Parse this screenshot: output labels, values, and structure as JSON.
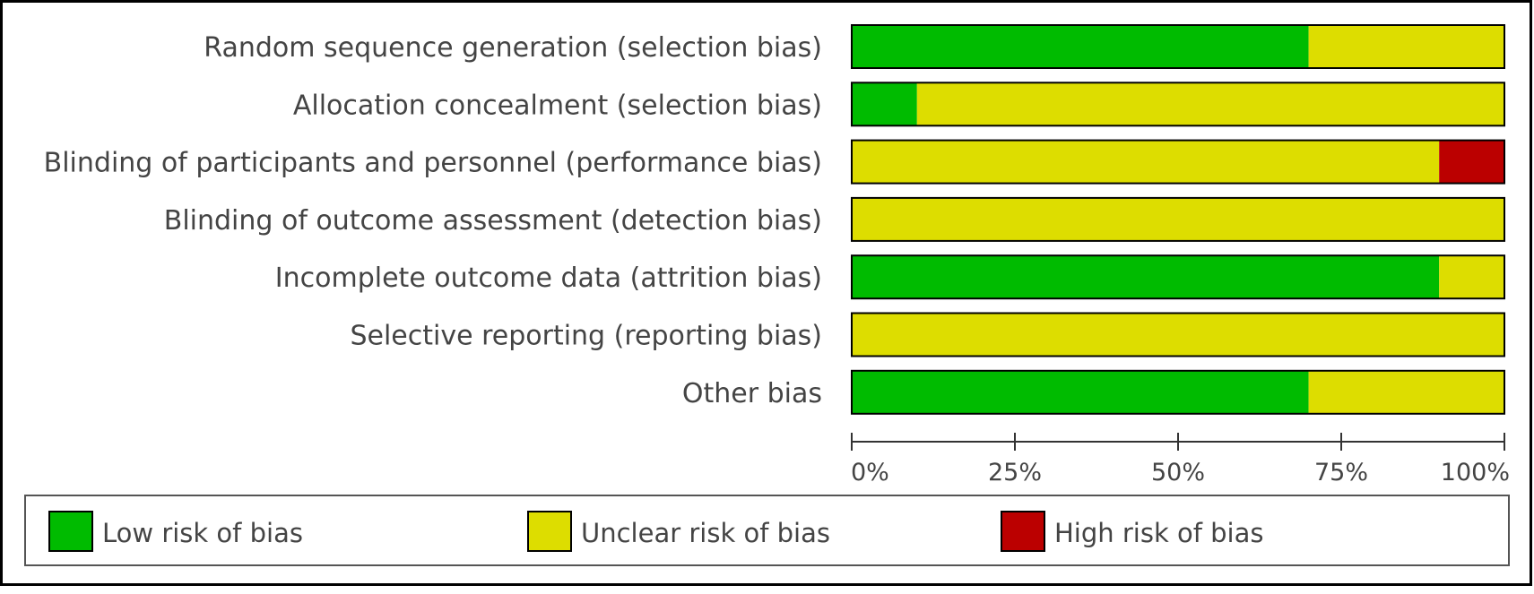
{
  "chart_data": {
    "type": "bar",
    "orientation": "horizontal",
    "stacked": true,
    "percent_scale": true,
    "categories": [
      "Random sequence generation (selection bias)",
      "Allocation concealment (selection bias)",
      "Blinding of participants and personnel (performance bias)",
      "Blinding of outcome assessment (detection bias)",
      "Incomplete outcome data (attrition bias)",
      "Selective reporting (reporting bias)",
      "Other bias"
    ],
    "series": [
      {
        "name": "Low risk of bias",
        "color": "#00bb00",
        "values": [
          70,
          10,
          0,
          0,
          90,
          0,
          70
        ]
      },
      {
        "name": "Unclear risk of bias",
        "color": "#dddd00",
        "values": [
          30,
          90,
          90,
          100,
          10,
          100,
          30
        ]
      },
      {
        "name": "High risk of bias",
        "color": "#bb0000",
        "values": [
          0,
          0,
          10,
          0,
          0,
          0,
          0
        ]
      }
    ],
    "xlim": [
      0,
      100
    ],
    "x_ticks": [
      0,
      25,
      50,
      75,
      100
    ],
    "x_tick_labels": [
      "0%",
      "25%",
      "50%",
      "75%",
      "100%"
    ],
    "grid": false,
    "legend_position": "bottom"
  }
}
